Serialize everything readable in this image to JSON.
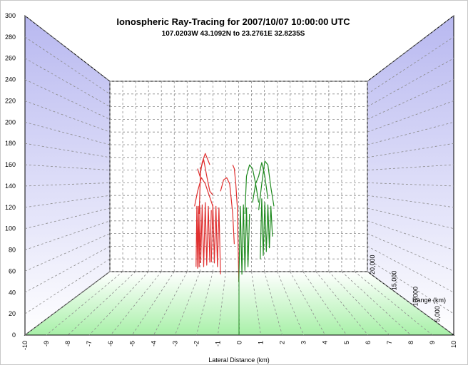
{
  "chart_data": {
    "type": "line",
    "title": "Ionospheric Ray-Tracing for 2007/10/07 10:00:00 UTC",
    "subtitle": "107.0203W 43.1092N to  23.2761E 32.8235S",
    "xlabel": "Lateral Distance (km)",
    "zlabel": "Range (km)",
    "ylabel": "",
    "xlim": [
      -10,
      10
    ],
    "ylim": [
      0,
      300
    ],
    "zlim": [
      0,
      20000
    ],
    "x_ticks": [
      "-10",
      "-9",
      "-8",
      "-7",
      "-6",
      "-5",
      "-4",
      "-3",
      "-2",
      "-1",
      "0",
      "1",
      "2",
      "3",
      "4",
      "5",
      "6",
      "7",
      "8",
      "9",
      "10"
    ],
    "y_ticks": [
      "0",
      "20",
      "40",
      "60",
      "80",
      "100",
      "120",
      "140",
      "160",
      "180",
      "200",
      "220",
      "240",
      "260",
      "280",
      "300"
    ],
    "z_ticks": [
      "5,000",
      "10,000",
      "15,000",
      "20,000"
    ],
    "grid": true,
    "series": [
      {
        "color": "#e03030",
        "rays": [
          {
            "lateral": [
              -2.8,
              -2.75,
              -2.7,
              -2.65,
              -2.6,
              -2.55,
              -2.5
            ],
            "height": [
              30,
              110,
              28,
              110,
              30,
              108,
              35
            ]
          },
          {
            "lateral": [
              -2.5,
              -2.4,
              -2.3,
              -2.2,
              -2.1,
              -2.0,
              -1.9,
              -1.8
            ],
            "height": [
              35,
              112,
              30,
              115,
              32,
              110,
              36,
              105
            ]
          },
          {
            "lateral": [
              -1.8,
              -1.7,
              -1.6,
              -1.5,
              -1.4,
              -1.3,
              -1.2
            ],
            "height": [
              36,
              112,
              35,
              110,
              30,
              108,
              20
            ]
          },
          {
            "lateral": [
              -2.6,
              -2.5,
              -2.3,
              -2.1,
              -1.9,
              -1.7
            ],
            "height": [
              100,
              160,
              172,
              150,
              130,
              125
            ]
          },
          {
            "lateral": [
              -2.7,
              -2.55,
              -2.4,
              -2.2,
              -2.0,
              -1.9
            ],
            "height": [
              160,
              150,
              168,
              180,
              170,
              165
            ]
          },
          {
            "lateral": [
              -2.9,
              -2.7,
              -2.45,
              -2.2,
              -1.95,
              -1.7
            ],
            "height": [
              110,
              130,
              148,
              140,
              125,
              110
            ]
          },
          {
            "lateral": [
              -1.2,
              -1.0,
              -0.8,
              -0.6,
              -0.5,
              -0.4,
              -0.3
            ],
            "height": [
              130,
              145,
              148,
              140,
              120,
              100,
              60
            ]
          },
          {
            "lateral": [
              -0.4,
              -0.3,
              -0.2,
              -0.1,
              0.0
            ],
            "height": [
              165,
              160,
              140,
              110,
              10
            ]
          }
        ]
      },
      {
        "color": "#1f8a1f",
        "rays": [
          {
            "lateral": [
              0.0,
              0.1,
              0.2,
              0.3,
              0.4,
              0.5,
              0.6,
              0.7
            ],
            "height": [
              10,
              110,
              20,
              112,
              25,
              108,
              30,
              100
            ]
          },
          {
            "lateral": [
              0.4,
              0.5,
              0.7,
              0.9,
              1.1,
              1.3
            ],
            "height": [
              100,
              150,
              165,
              160,
              140,
              115
            ]
          },
          {
            "lateral": [
              0.9,
              1.1,
              1.3,
              1.5,
              1.7,
              1.9
            ],
            "height": [
              115,
              140,
              150,
              168,
              150,
              120
            ]
          },
          {
            "lateral": [
              1.3,
              1.5,
              1.7,
              1.9,
              2.1,
              2.3
            ],
            "height": [
              105,
              140,
              170,
              165,
              135,
              110
            ]
          },
          {
            "lateral": [
              1.4,
              1.5,
              1.6,
              1.7,
              1.8,
              1.9,
              2.0,
              2.1,
              2.2
            ],
            "height": [
              40,
              120,
              45,
              115,
              50,
              112,
              55,
              110,
              70
            ]
          }
        ]
      }
    ]
  }
}
